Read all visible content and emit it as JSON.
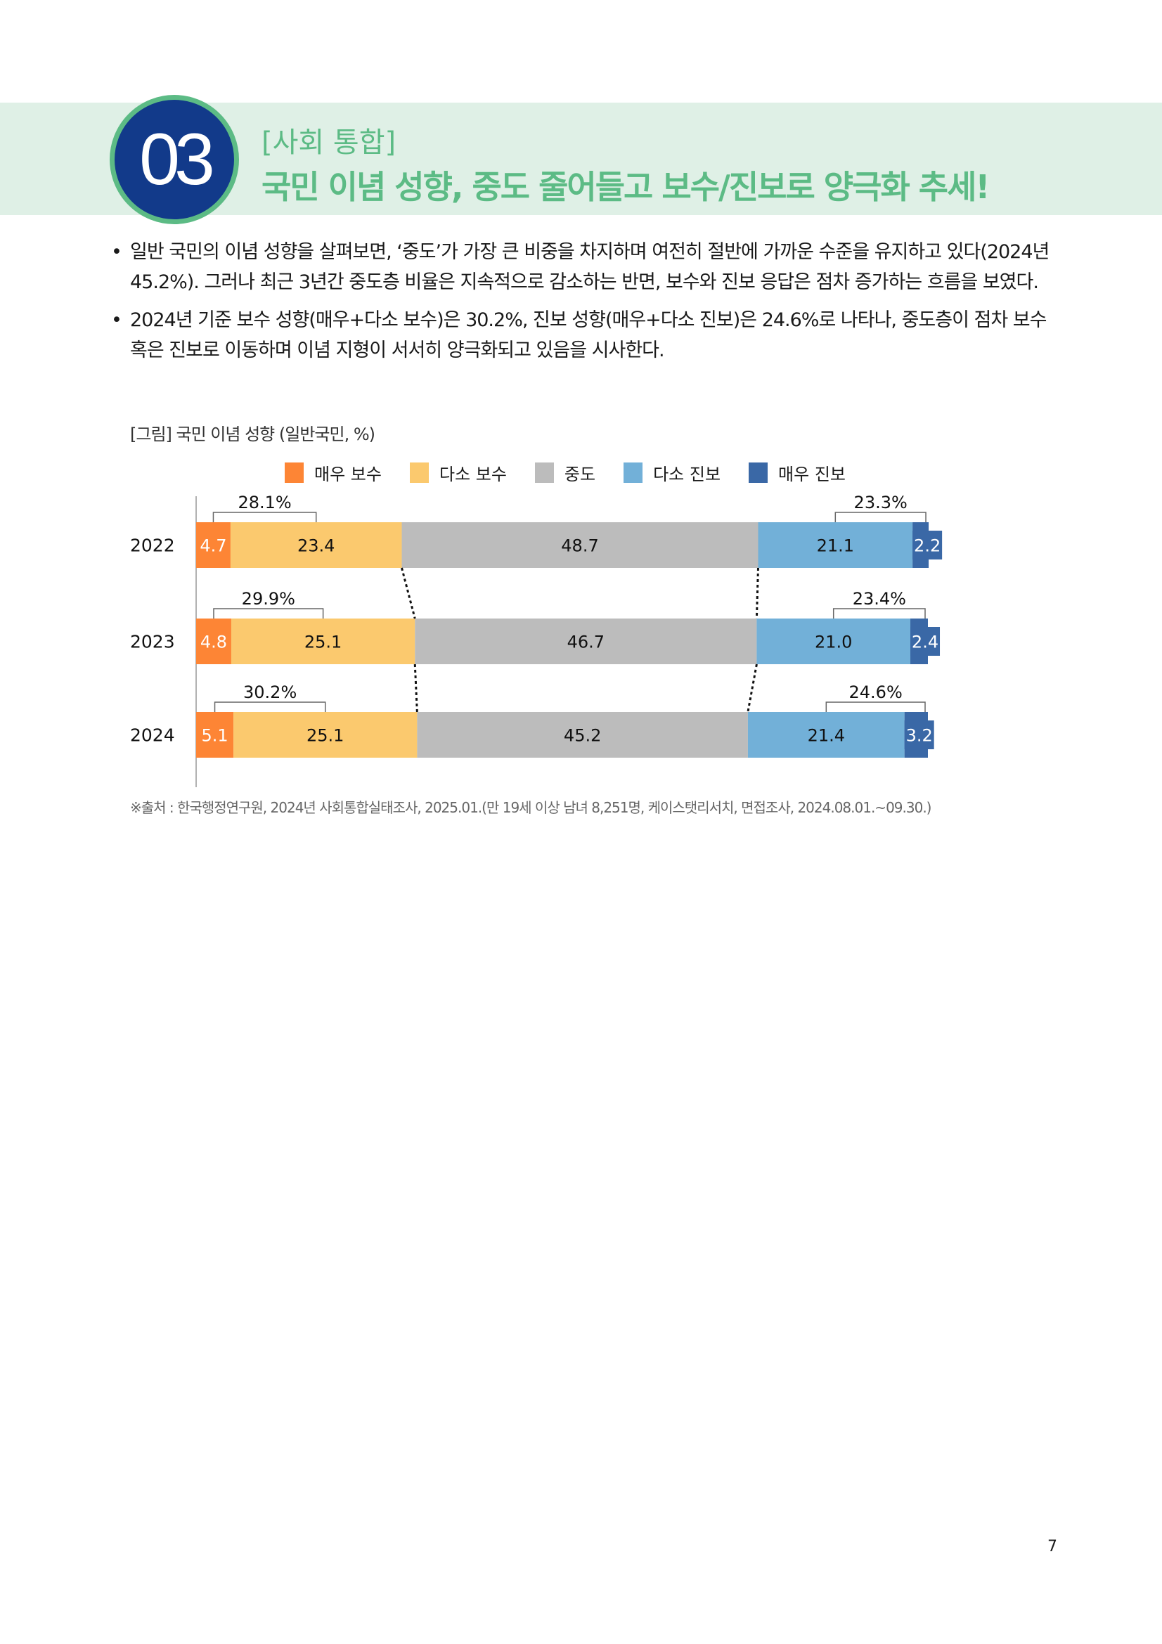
{
  "header": {
    "number": "03",
    "category": "[사회 통합]",
    "title": "국민 이념 성향, 중도 줄어들고 보수/진보로 양극화 추세!"
  },
  "bullets": [
    "일반 국민의 이념 성향을 살펴보면, ‘중도’가 가장 큰 비중을 차지하며 여전히 절반에 가까운 수준을 유지하고 있다(2024년 45.2%). 그러나 최근 3년간 중도층 비율은 지속적으로 감소하는 반면, 보수와 진보 응답은 점차 증가하는 흐름을 보였다.",
    "2024년 기준 보수 성향(매우+다소 보수)은 30.2%, 진보 성향(매우+다소 진보)은 24.6%로 나타나, 중도층이 점차 보수 혹은 진보로 이동하며 이념 지형이 서서히 양극화되고 있음을 시사한다."
  ],
  "bullet_symbol": "•",
  "chart_data": {
    "type": "bar",
    "orientation": "horizontal-stacked",
    "title": "[그림] 국민 이념 성향 (일반국민, %)",
    "categories": [
      "2022",
      "2023",
      "2024"
    ],
    "legend_position": "top",
    "series": [
      {
        "name": "매우 보수",
        "color": "#fd8535",
        "values": [
          4.7,
          4.8,
          5.1
        ]
      },
      {
        "name": "다소 보수",
        "color": "#fbc96e",
        "values": [
          23.4,
          25.1,
          25.1
        ]
      },
      {
        "name": "중도",
        "color": "#bcbcbc",
        "values": [
          48.7,
          46.7,
          45.2
        ]
      },
      {
        "name": "다소 진보",
        "color": "#72b0d8",
        "values": [
          21.1,
          21.0,
          21.4
        ]
      },
      {
        "name": "매우 진보",
        "color": "#3a68a6",
        "values": [
          2.2,
          2.4,
          3.2
        ]
      }
    ],
    "conservative_totals": [
      "28.1%",
      "29.9%",
      "30.2%"
    ],
    "progressive_totals": [
      "23.3%",
      "23.4%",
      "24.6%"
    ],
    "xlim": [
      0,
      100
    ],
    "grid": false
  },
  "source": "※출처 : 한국행정연구원, 2024년 사회통합실태조사, 2025.01.(만 19세 이상 남녀 8,251명, 케이스탯리서치, 면접조사, 2024.08.01.~09.30.)",
  "page_number": "7"
}
